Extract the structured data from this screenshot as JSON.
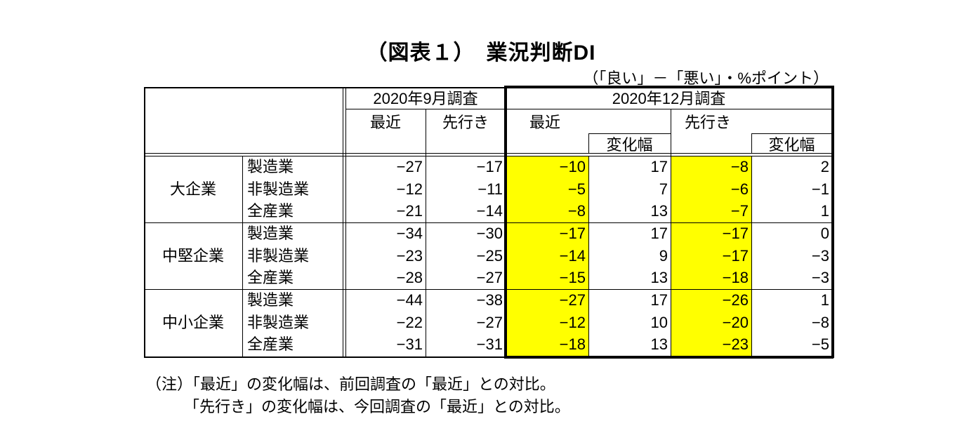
{
  "title": "（図表１）　業況判断DI",
  "unit_note": "（「良い」－「悪い」・%ポイント）",
  "header": {
    "survey_sep": "2020年9月調査",
    "survey_dec": "2020年12月調査",
    "recent": "最近",
    "outlook": "先行き",
    "change": "変化幅"
  },
  "groups": [
    {
      "name": "大企業",
      "rows": [
        {
          "sector": "製造業",
          "sep_recent": "−27",
          "sep_outlook": "−17",
          "dec_recent": "−10",
          "dec_recent_change": "17",
          "dec_outlook": "−8",
          "dec_outlook_change": "2"
        },
        {
          "sector": "非製造業",
          "sep_recent": "−12",
          "sep_outlook": "−11",
          "dec_recent": "−5",
          "dec_recent_change": "7",
          "dec_outlook": "−6",
          "dec_outlook_change": "−1"
        },
        {
          "sector": "全産業",
          "sep_recent": "−21",
          "sep_outlook": "−14",
          "dec_recent": "−8",
          "dec_recent_change": "13",
          "dec_outlook": "−7",
          "dec_outlook_change": "1"
        }
      ]
    },
    {
      "name": "中堅企業",
      "rows": [
        {
          "sector": "製造業",
          "sep_recent": "−34",
          "sep_outlook": "−30",
          "dec_recent": "−17",
          "dec_recent_change": "17",
          "dec_outlook": "−17",
          "dec_outlook_change": "0"
        },
        {
          "sector": "非製造業",
          "sep_recent": "−23",
          "sep_outlook": "−25",
          "dec_recent": "−14",
          "dec_recent_change": "9",
          "dec_outlook": "−17",
          "dec_outlook_change": "−3"
        },
        {
          "sector": "全産業",
          "sep_recent": "−28",
          "sep_outlook": "−27",
          "dec_recent": "−15",
          "dec_recent_change": "13",
          "dec_outlook": "−18",
          "dec_outlook_change": "−3"
        }
      ]
    },
    {
      "name": "中小企業",
      "rows": [
        {
          "sector": "製造業",
          "sep_recent": "−44",
          "sep_outlook": "−38",
          "dec_recent": "−27",
          "dec_recent_change": "17",
          "dec_outlook": "−26",
          "dec_outlook_change": "1"
        },
        {
          "sector": "非製造業",
          "sep_recent": "−22",
          "sep_outlook": "−27",
          "dec_recent": "−12",
          "dec_recent_change": "10",
          "dec_outlook": "−20",
          "dec_outlook_change": "−8"
        },
        {
          "sector": "全産業",
          "sep_recent": "−31",
          "sep_outlook": "−31",
          "dec_recent": "−18",
          "dec_recent_change": "13",
          "dec_outlook": "−23",
          "dec_outlook_change": "−5"
        }
      ]
    }
  ],
  "notes": [
    "（注）「最近」の変化幅は、前回調査の「最近」との対比。",
    "「先行き」の変化幅は、今回調査の「最近」との対比。"
  ],
  "colors": {
    "highlight": "#ffff00",
    "border": "#000000",
    "text": "#000000",
    "background": "#ffffff"
  }
}
